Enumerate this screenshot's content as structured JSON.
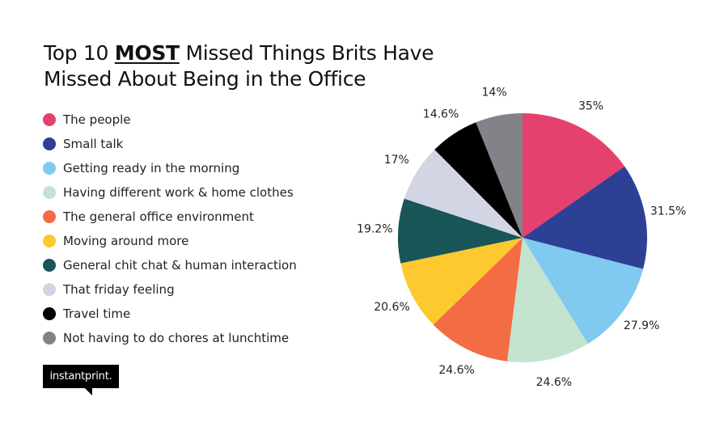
{
  "title": {
    "line1_prefix": "Top 10 ",
    "line1_emphasis": "MOST",
    "line1_suffix": " Missed Things Brits Have",
    "line2": "Missed About Being in the Office"
  },
  "logo": {
    "text": "instantprint."
  },
  "chart_data": {
    "type": "pie",
    "title": "Top 10 MOST Missed Things Brits Have Missed About Being in the Office",
    "legend_position": "left",
    "categories": [
      "The people",
      "Small talk",
      "Getting ready in the morning",
      "Having different work & home clothes",
      "The general office environment",
      "Moving around more",
      "General chit chat & human interaction",
      "That friday feeling",
      "Travel time",
      "Not having to do chores at lunchtime"
    ],
    "values": [
      35,
      31.5,
      27.9,
      24.6,
      24.6,
      20.6,
      19.2,
      17,
      14.6,
      14
    ],
    "labels": [
      "35%",
      "31.5%",
      "27.9%",
      "24.6%",
      "24.6%",
      "20.6%",
      "19.2%",
      "17%",
      "14.6%",
      "14%"
    ],
    "colors": [
      "#e5416e",
      "#2e3f96",
      "#80caf0",
      "#c4e4d0",
      "#f36c44",
      "#fdc92e",
      "#1a5558",
      "#d3d5e5",
      "#000000",
      "#818388"
    ]
  }
}
